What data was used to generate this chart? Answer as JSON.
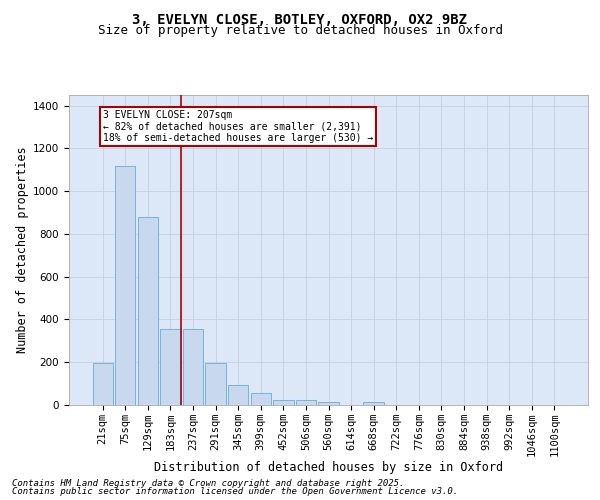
{
  "title1": "3, EVELYN CLOSE, BOTLEY, OXFORD, OX2 9BZ",
  "title2": "Size of property relative to detached houses in Oxford",
  "xlabel": "Distribution of detached houses by size in Oxford",
  "ylabel": "Number of detached properties",
  "categories": [
    "21sqm",
    "75sqm",
    "129sqm",
    "183sqm",
    "237sqm",
    "291sqm",
    "345sqm",
    "399sqm",
    "452sqm",
    "506sqm",
    "560sqm",
    "614sqm",
    "668sqm",
    "722sqm",
    "776sqm",
    "830sqm",
    "884sqm",
    "938sqm",
    "992sqm",
    "1046sqm",
    "1100sqm"
  ],
  "values": [
    195,
    1120,
    880,
    355,
    355,
    195,
    95,
    57,
    22,
    22,
    14,
    0,
    13,
    0,
    0,
    0,
    0,
    0,
    0,
    0,
    0
  ],
  "bar_color": "#c8d8ee",
  "bar_edge_color": "#6bacd4",
  "vline_color": "#aa0000",
  "annotation_text": "3 EVELYN CLOSE: 207sqm\n← 82% of detached houses are smaller (2,391)\n18% of semi-detached houses are larger (530) →",
  "annotation_box_color": "#aa0000",
  "ylim": [
    0,
    1450
  ],
  "yticks": [
    0,
    200,
    400,
    600,
    800,
    1000,
    1200,
    1400
  ],
  "grid_color": "#c8d0e0",
  "bg_color": "#dce8f8",
  "footer1": "Contains HM Land Registry data © Crown copyright and database right 2025.",
  "footer2": "Contains public sector information licensed under the Open Government Licence v3.0.",
  "title_fontsize": 10,
  "subtitle_fontsize": 9,
  "axis_label_fontsize": 8.5,
  "tick_fontsize": 7.5,
  "footer_fontsize": 6.5
}
